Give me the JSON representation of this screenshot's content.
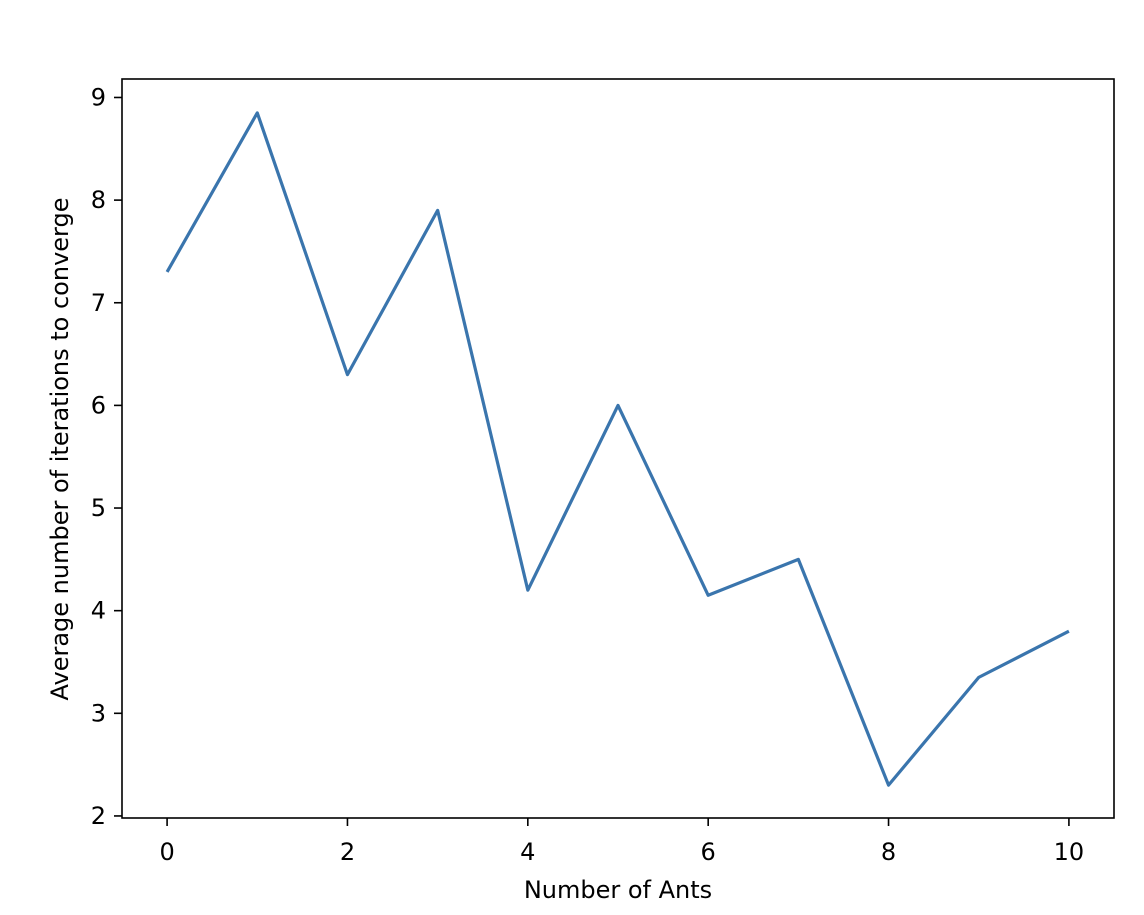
{
  "chart_data": {
    "type": "line",
    "title": "",
    "xlabel": "Number of Ants",
    "ylabel": "Average number of iterations to converge",
    "xlim": [
      -0.5,
      10.5
    ],
    "ylim": [
      1.98,
      9.18
    ],
    "xticks": [
      0,
      2,
      4,
      6,
      8,
      10
    ],
    "yticks": [
      2,
      3,
      4,
      5,
      6,
      7,
      8,
      9
    ],
    "grid": false,
    "legend": "none",
    "x": [
      0,
      1,
      2,
      3,
      4,
      5,
      6,
      7,
      8,
      9,
      10
    ],
    "series": [
      {
        "values": [
          7.3,
          8.85,
          6.3,
          7.9,
          4.2,
          6.0,
          4.15,
          4.5,
          2.3,
          3.35,
          3.8
        ],
        "color": "#3a75ad"
      }
    ]
  }
}
